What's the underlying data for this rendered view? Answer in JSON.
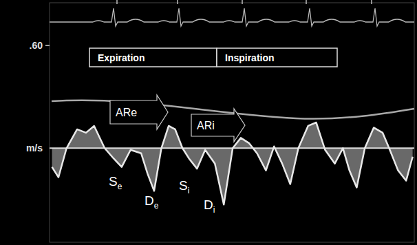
{
  "chart_data": {
    "type": "line",
    "color": "#e8e8e8",
    "grid": false,
    "tick_labels": "y",
    "xlim": [
      0,
      4.5
    ],
    "ylim": [
      -0.55,
      0.85
    ],
    "yticks": [
      {
        "value": 0.6,
        "label": ".60"
      },
      {
        "value": 0,
        "label": "m/s"
      }
    ],
    "annotations": [
      "Expiration",
      "Inspiration",
      "ARe",
      "ARi",
      "Se",
      "De",
      "Si",
      "Di"
    ],
    "x": [
      0.03,
      0.11,
      0.21,
      0.34,
      0.45,
      0.55,
      0.68,
      0.79,
      0.89,
      1.0,
      1.13,
      1.21,
      1.29,
      1.38,
      1.47,
      1.55,
      1.64,
      1.72,
      1.82,
      1.92,
      2.04,
      2.15,
      2.26,
      2.36,
      2.46,
      2.56,
      2.67,
      2.77,
      2.87,
      2.97,
      3.07,
      3.19,
      3.29,
      3.4,
      3.52,
      3.62,
      3.7,
      3.79,
      3.89,
      4.0,
      4.11,
      4.19,
      4.3,
      4.4,
      4.48
    ],
    "values": [
      -0.11,
      -0.17,
      0,
      0.11,
      0.09,
      0.13,
      0,
      -0.06,
      -0.11,
      -0.01,
      -0.03,
      -0.15,
      -0.25,
      0,
      0.13,
      0.11,
      0,
      -0.06,
      -0.12,
      -0.01,
      -0.09,
      -0.33,
      0,
      0.06,
      0.03,
      -0.03,
      -0.13,
      0.01,
      -0.09,
      -0.21,
      0,
      0.13,
      0.15,
      -0.01,
      -0.09,
      0,
      -0.13,
      -0.23,
      0,
      0.12,
      0.09,
      0,
      -0.13,
      -0.19,
      -0.05
    ]
  }
}
